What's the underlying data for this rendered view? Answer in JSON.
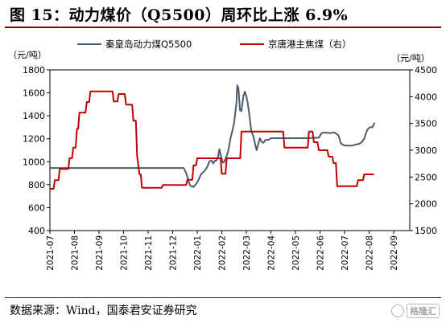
{
  "figure": {
    "title": "图 15：动力煤价（Q5500）周环比上涨 6.9%",
    "source": "数据来源：Wind，国泰君安证券研究",
    "watermark": "格隆汇"
  },
  "colors": {
    "rule": "#8B0000",
    "qhd": "#4C5A6E",
    "jingtang": "#C00000",
    "axis": "#000000"
  },
  "chart_data": {
    "type": "line",
    "left_unit": "（元/吨）",
    "right_unit": "（元/吨）",
    "left_ylim": [
      400,
      1800
    ],
    "left_ticks": [
      400,
      600,
      800,
      1000,
      1200,
      1400,
      1600,
      1800
    ],
    "right_ylim": [
      1500,
      4500
    ],
    "right_ticks": [
      1500,
      2000,
      2500,
      3000,
      3500,
      4000,
      4500
    ],
    "x_ticks": [
      "2021-07",
      "2021-08",
      "2021-09",
      "2021-10",
      "2021-11",
      "2021-12",
      "2022-01",
      "2022-02",
      "2022-03",
      "2022-04",
      "2022-05",
      "2022-06",
      "2022-07",
      "2022-08",
      "2022-09"
    ],
    "grid": false,
    "legend_position": "top",
    "series": [
      {
        "name": "秦皇岛动力煤Q5500",
        "axis": "left",
        "color": "#4C5A6E",
        "points": [
          [
            0.0,
            945
          ],
          [
            5.45,
            945
          ],
          [
            5.55,
            900
          ],
          [
            5.65,
            830
          ],
          [
            5.72,
            790
          ],
          [
            5.85,
            780
          ],
          [
            5.95,
            805
          ],
          [
            6.05,
            840
          ],
          [
            6.15,
            890
          ],
          [
            6.3,
            920
          ],
          [
            6.4,
            950
          ],
          [
            6.5,
            1005
          ],
          [
            6.58,
            1010
          ],
          [
            6.65,
            985
          ],
          [
            6.72,
            1010
          ],
          [
            6.78,
            1010
          ],
          [
            6.85,
            1045
          ],
          [
            6.9,
            1110
          ],
          [
            6.95,
            1060
          ],
          [
            7.05,
            990
          ],
          [
            7.1,
            1000
          ],
          [
            7.2,
            1050
          ],
          [
            7.27,
            1100
          ],
          [
            7.35,
            1200
          ],
          [
            7.42,
            1260
          ],
          [
            7.5,
            1340
          ],
          [
            7.55,
            1430
          ],
          [
            7.6,
            1520
          ],
          [
            7.63,
            1665
          ],
          [
            7.68,
            1640
          ],
          [
            7.74,
            1450
          ],
          [
            7.8,
            1440
          ],
          [
            7.88,
            1570
          ],
          [
            7.94,
            1610
          ],
          [
            8.0,
            1570
          ],
          [
            8.05,
            1520
          ],
          [
            8.12,
            1410
          ],
          [
            8.2,
            1270
          ],
          [
            8.3,
            1210
          ],
          [
            8.36,
            1150
          ],
          [
            8.42,
            1100
          ],
          [
            8.48,
            1150
          ],
          [
            8.55,
            1205
          ],
          [
            8.62,
            1175
          ],
          [
            8.7,
            1165
          ],
          [
            8.78,
            1190
          ],
          [
            8.9,
            1190
          ],
          [
            9.0,
            1205
          ],
          [
            10.0,
            1205
          ],
          [
            10.5,
            1205
          ],
          [
            10.95,
            1210
          ],
          [
            11.05,
            1245
          ],
          [
            11.15,
            1255
          ],
          [
            11.4,
            1250
          ],
          [
            11.6,
            1255
          ],
          [
            11.75,
            1230
          ],
          [
            11.85,
            1160
          ],
          [
            11.95,
            1145
          ],
          [
            12.05,
            1140
          ],
          [
            12.3,
            1140
          ],
          [
            12.45,
            1150
          ],
          [
            12.6,
            1155
          ],
          [
            12.7,
            1170
          ],
          [
            12.8,
            1200
          ],
          [
            12.85,
            1235
          ],
          [
            12.93,
            1280
          ],
          [
            13.03,
            1300
          ],
          [
            13.13,
            1300
          ],
          [
            13.22,
            1340
          ]
        ]
      },
      {
        "name": "京唐港主焦煤（右）",
        "axis": "right",
        "color": "#C00000",
        "points": [
          [
            0.0,
            2280
          ],
          [
            0.15,
            2280
          ],
          [
            0.2,
            2440
          ],
          [
            0.35,
            2440
          ],
          [
            0.4,
            2650
          ],
          [
            0.75,
            2650
          ],
          [
            0.8,
            2850
          ],
          [
            0.9,
            2850
          ],
          [
            0.95,
            3050
          ],
          [
            1.05,
            3050
          ],
          [
            1.1,
            3400
          ],
          [
            1.15,
            3400
          ],
          [
            1.2,
            3700
          ],
          [
            1.45,
            3700
          ],
          [
            1.5,
            3900
          ],
          [
            1.6,
            3900
          ],
          [
            1.65,
            4100
          ],
          [
            2.55,
            4100
          ],
          [
            2.6,
            3910
          ],
          [
            2.75,
            3910
          ],
          [
            2.8,
            4050
          ],
          [
            3.05,
            4050
          ],
          [
            3.1,
            3850
          ],
          [
            3.35,
            3850
          ],
          [
            3.4,
            3550
          ],
          [
            3.5,
            3550
          ],
          [
            3.55,
            2900
          ],
          [
            3.65,
            2550
          ],
          [
            3.7,
            2550
          ],
          [
            3.75,
            2300
          ],
          [
            4.55,
            2300
          ],
          [
            4.6,
            2350
          ],
          [
            5.55,
            2350
          ],
          [
            5.6,
            2450
          ],
          [
            5.8,
            2450
          ],
          [
            5.85,
            2720
          ],
          [
            5.95,
            2720
          ],
          [
            6.0,
            2850
          ],
          [
            6.95,
            2850
          ],
          [
            7.0,
            2560
          ],
          [
            7.15,
            2560
          ],
          [
            7.2,
            2850
          ],
          [
            7.75,
            2850
          ],
          [
            7.8,
            3350
          ],
          [
            9.5,
            3350
          ],
          [
            9.55,
            3050
          ],
          [
            10.5,
            3050
          ],
          [
            10.55,
            3350
          ],
          [
            10.7,
            3350
          ],
          [
            10.75,
            3150
          ],
          [
            10.9,
            3150
          ],
          [
            10.95,
            3000
          ],
          [
            11.3,
            3000
          ],
          [
            11.35,
            2880
          ],
          [
            11.5,
            2880
          ],
          [
            11.55,
            2760
          ],
          [
            11.65,
            2760
          ],
          [
            11.7,
            2330
          ],
          [
            12.5,
            2330
          ],
          [
            12.55,
            2440
          ],
          [
            12.75,
            2440
          ],
          [
            12.8,
            2550
          ],
          [
            13.2,
            2550
          ]
        ]
      }
    ]
  }
}
